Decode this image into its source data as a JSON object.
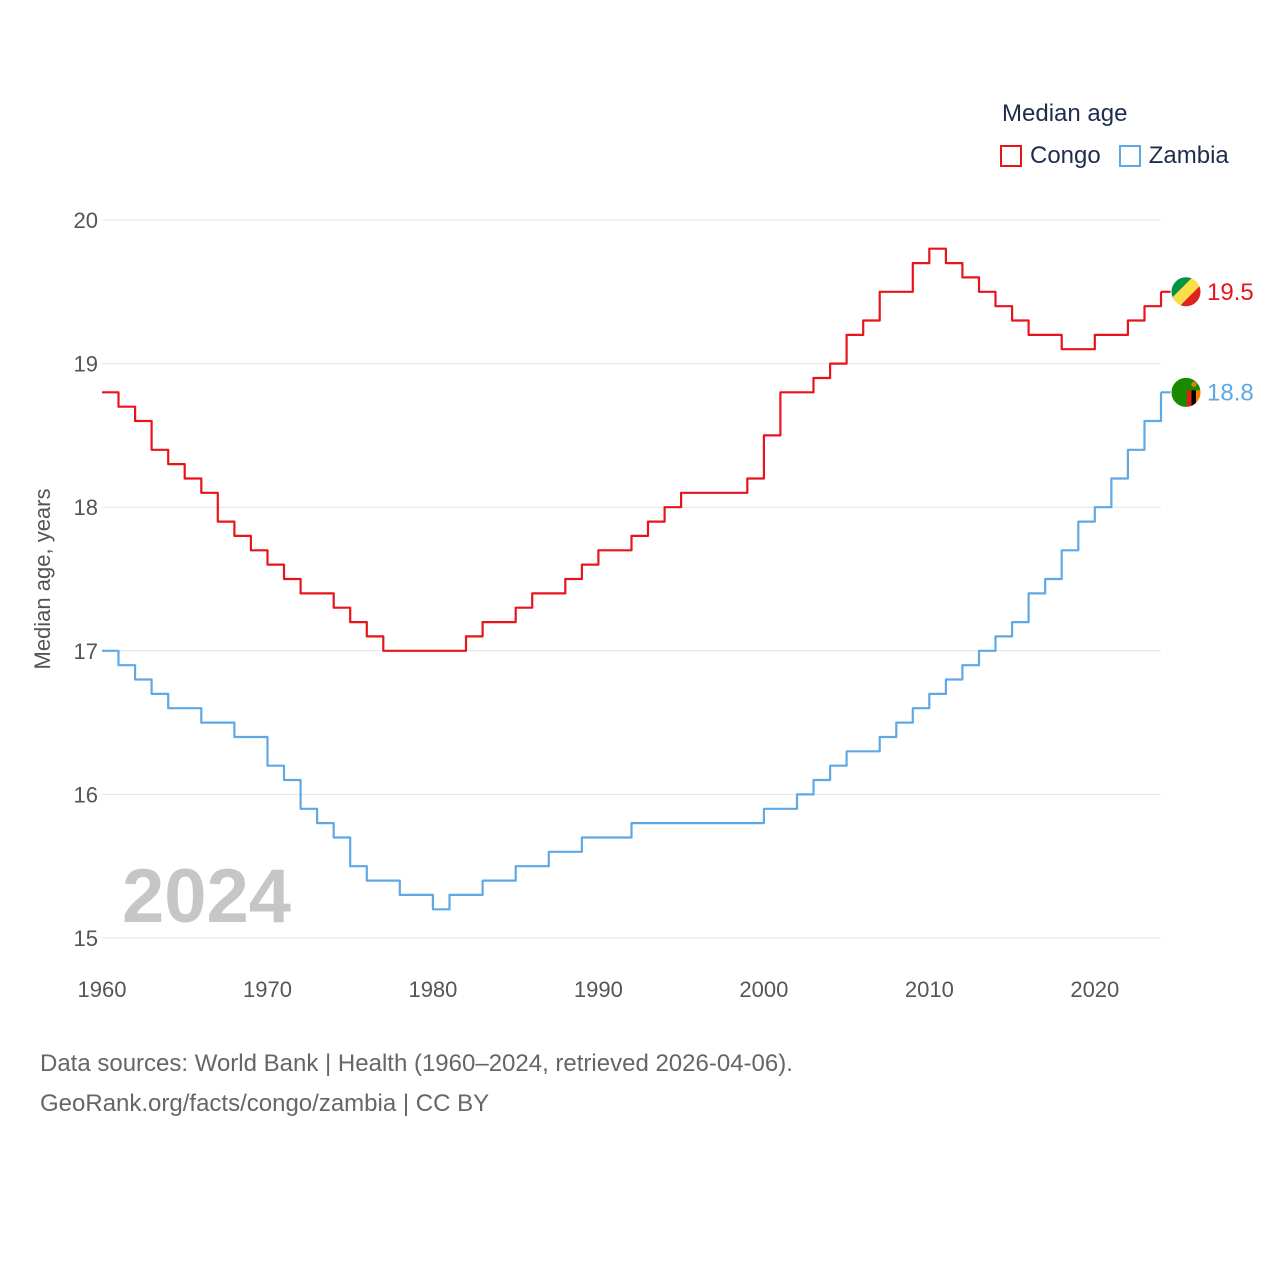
{
  "legend": {
    "title": "Median age",
    "items": [
      {
        "name": "Congo",
        "color": "#e8141c"
      },
      {
        "name": "Zambia",
        "color": "#5fa8e6"
      }
    ]
  },
  "footer": {
    "line1": "Data sources: World Bank | Health (1960–2024, retrieved 2026-04-06).",
    "line2": "GeoRank.org/facts/congo/zambia | CC BY"
  },
  "chart_data": {
    "type": "line",
    "title": "Median age",
    "ylabel": "Median age, years",
    "xlabel": "",
    "ylim": [
      15,
      20
    ],
    "xlim": [
      1960,
      2024
    ],
    "yticks": [
      15,
      16,
      17,
      18,
      19,
      20
    ],
    "xticks": [
      1960,
      1970,
      1980,
      1990,
      2000,
      2010,
      2020
    ],
    "year_label": "2024",
    "grid": true,
    "legend_position": "top-right",
    "x": [
      1960,
      1961,
      1962,
      1963,
      1964,
      1965,
      1966,
      1967,
      1968,
      1969,
      1970,
      1971,
      1972,
      1973,
      1974,
      1975,
      1976,
      1977,
      1978,
      1979,
      1980,
      1981,
      1982,
      1983,
      1984,
      1985,
      1986,
      1987,
      1988,
      1989,
      1990,
      1991,
      1992,
      1993,
      1994,
      1995,
      1996,
      1997,
      1998,
      1999,
      2000,
      2001,
      2002,
      2003,
      2004,
      2005,
      2006,
      2007,
      2008,
      2009,
      2010,
      2011,
      2012,
      2013,
      2014,
      2015,
      2016,
      2017,
      2018,
      2019,
      2020,
      2021,
      2022,
      2023,
      2024
    ],
    "series": [
      {
        "name": "Congo",
        "color": "#e8141c",
        "end_label": "19.5",
        "values": [
          18.8,
          18.7,
          18.6,
          18.4,
          18.3,
          18.2,
          18.1,
          17.9,
          17.8,
          17.7,
          17.6,
          17.5,
          17.4,
          17.4,
          17.3,
          17.2,
          17.1,
          17.0,
          17.0,
          17.0,
          17.0,
          17.0,
          17.1,
          17.2,
          17.2,
          17.3,
          17.4,
          17.4,
          17.5,
          17.6,
          17.7,
          17.7,
          17.8,
          17.9,
          18.0,
          18.1,
          18.1,
          18.1,
          18.1,
          18.2,
          18.5,
          18.8,
          18.8,
          18.9,
          19.0,
          19.2,
          19.3,
          19.5,
          19.5,
          19.7,
          19.8,
          19.7,
          19.6,
          19.5,
          19.4,
          19.3,
          19.2,
          19.2,
          19.1,
          19.1,
          19.2,
          19.2,
          19.3,
          19.4,
          19.5
        ]
      },
      {
        "name": "Zambia",
        "color": "#5fa8e6",
        "end_label": "18.8",
        "values": [
          17.0,
          16.9,
          16.8,
          16.7,
          16.6,
          16.6,
          16.5,
          16.5,
          16.4,
          16.4,
          16.2,
          16.1,
          15.9,
          15.8,
          15.7,
          15.5,
          15.4,
          15.4,
          15.3,
          15.3,
          15.2,
          15.3,
          15.3,
          15.4,
          15.4,
          15.5,
          15.5,
          15.6,
          15.6,
          15.7,
          15.7,
          15.7,
          15.8,
          15.8,
          15.8,
          15.8,
          15.8,
          15.8,
          15.8,
          15.8,
          15.9,
          15.9,
          16.0,
          16.1,
          16.2,
          16.3,
          16.3,
          16.4,
          16.5,
          16.6,
          16.7,
          16.8,
          16.9,
          17.0,
          17.1,
          17.2,
          17.4,
          17.5,
          17.7,
          17.9,
          18.0,
          18.2,
          18.4,
          18.6,
          18.8
        ]
      }
    ]
  }
}
